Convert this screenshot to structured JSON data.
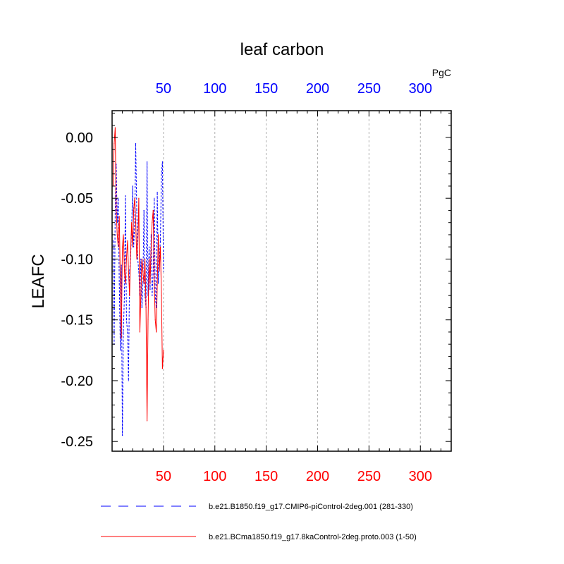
{
  "chart_data": {
    "type": "line",
    "title": "leaf carbon",
    "units": "PgC",
    "ylabel": "LEAFC",
    "xlabel": "",
    "xlim": [
      0,
      330
    ],
    "ylim": [
      -0.258,
      0.022
    ],
    "grid": "vertical-dashed",
    "x_ticks": [
      50,
      100,
      150,
      200,
      250,
      300
    ],
    "x_tick_labels": [
      "50",
      "100",
      "150",
      "200",
      "250",
      "300"
    ],
    "y_ticks": [
      0.0,
      -0.05,
      -0.1,
      -0.15,
      -0.2,
      -0.25
    ],
    "y_tick_labels": [
      "0.00",
      "-0.05",
      "-0.10",
      "-0.15",
      "-0.20",
      "-0.25"
    ],
    "top_axis_color": "#0000ff",
    "bottom_axis_color": "#ff0000",
    "legend_position": "bottom",
    "series": [
      {
        "name": "b.e21.B1850.f19_g17.CMIP6-piControl-2deg.001 (281-330)",
        "color": "#0000ff",
        "dash": "dashed",
        "x": [
          1,
          2,
          3,
          4,
          5,
          6,
          7,
          8,
          9,
          10,
          11,
          12,
          13,
          14,
          15,
          16,
          17,
          18,
          19,
          20,
          21,
          22,
          23,
          24,
          25,
          26,
          27,
          28,
          29,
          30,
          31,
          32,
          33,
          34,
          35,
          36,
          37,
          38,
          39,
          40,
          41,
          42,
          43,
          44,
          45,
          46,
          47,
          48,
          49,
          50
        ],
        "values": [
          -0.085,
          -0.17,
          -0.06,
          -0.022,
          -0.07,
          -0.05,
          -0.12,
          -0.175,
          -0.105,
          -0.245,
          -0.16,
          -0.13,
          -0.048,
          -0.15,
          -0.16,
          -0.2,
          -0.11,
          -0.1,
          -0.075,
          -0.04,
          -0.09,
          -0.07,
          -0.005,
          -0.06,
          -0.1,
          -0.11,
          -0.13,
          -0.1,
          -0.14,
          -0.12,
          -0.06,
          -0.13,
          -0.14,
          -0.02,
          -0.13,
          -0.09,
          -0.125,
          -0.08,
          -0.13,
          -0.11,
          -0.05,
          -0.13,
          -0.14,
          -0.045,
          -0.12,
          -0.1,
          -0.085,
          -0.03,
          -0.02,
          -0.11
        ]
      },
      {
        "name": "b.e21.BCma1850.f19_g17.8kaControl-2deg.proto.003 (1-50)",
        "color": "#ff0000",
        "dash": "solid",
        "x": [
          1,
          2,
          3,
          4,
          5,
          6,
          7,
          8,
          9,
          10,
          11,
          12,
          13,
          14,
          15,
          16,
          17,
          18,
          19,
          20,
          21,
          22,
          23,
          24,
          25,
          26,
          27,
          28,
          29,
          30,
          31,
          32,
          33,
          34,
          35,
          36,
          37,
          38,
          39,
          40,
          41,
          42,
          43,
          44,
          45,
          46,
          47,
          48,
          49,
          50
        ],
        "values": [
          -0.04,
          -0.005,
          0.008,
          -0.06,
          -0.08,
          -0.09,
          -0.065,
          -0.12,
          -0.165,
          -0.09,
          -0.08,
          -0.11,
          -0.12,
          -0.1,
          -0.085,
          -0.11,
          -0.13,
          -0.095,
          -0.07,
          -0.09,
          -0.06,
          -0.05,
          -0.07,
          -0.1,
          -0.09,
          -0.05,
          -0.16,
          -0.13,
          -0.1,
          -0.11,
          -0.12,
          -0.1,
          -0.14,
          -0.233,
          -0.15,
          -0.1,
          -0.12,
          -0.09,
          -0.07,
          -0.06,
          -0.12,
          -0.15,
          -0.16,
          -0.12,
          -0.08,
          -0.11,
          -0.09,
          -0.13,
          -0.19,
          -0.175
        ]
      }
    ]
  }
}
